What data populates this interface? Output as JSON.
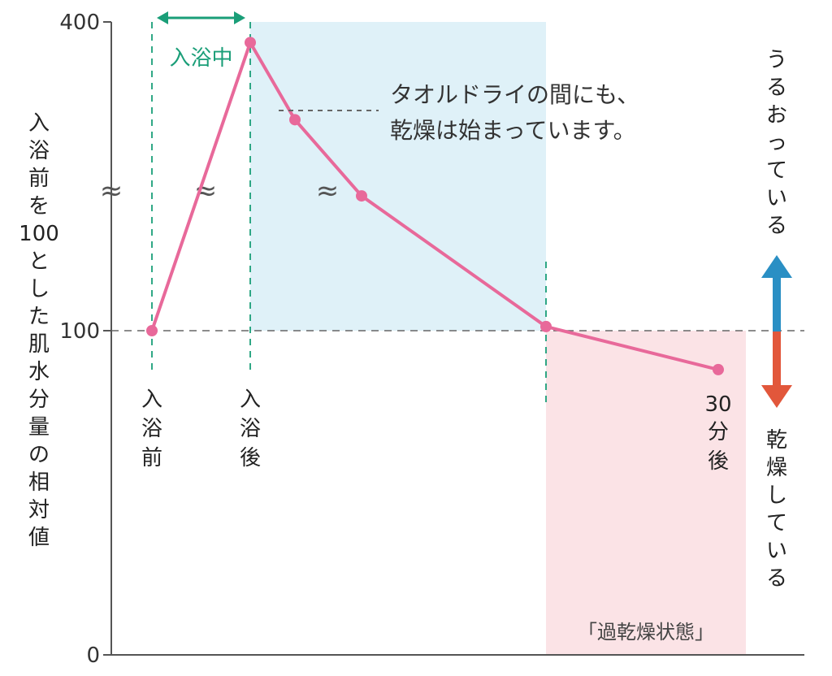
{
  "chart_data": {
    "type": "line",
    "ylabel": "入浴前を100とした肌水分量の相対値",
    "ylim": [
      0,
      400
    ],
    "y_ticks": [
      "0",
      "100",
      "400"
    ],
    "x_labels": [
      {
        "id": "before",
        "text": "入浴前",
        "x": 0
      },
      {
        "id": "after",
        "text": "入浴後",
        "x": 1
      },
      {
        "id": "thirty",
        "text": "30分後",
        "x": 5.8
      }
    ],
    "series": [
      {
        "color": "#e8699a",
        "points": [
          {
            "x": 0,
            "y": 100
          },
          {
            "x": 1,
            "y": 380
          },
          {
            "x": 1.5,
            "y": 305
          },
          {
            "x": 2.2,
            "y": 231
          },
          {
            "x": 4,
            "y": 104
          },
          {
            "x": 5.8,
            "y": 88
          }
        ]
      }
    ],
    "reference_line": {
      "y": 100,
      "style": "dashed"
    },
    "bathing": {
      "label": "入浴中",
      "from": 0,
      "to": 1,
      "color": "#1a9e78"
    },
    "towel_region": {
      "from": 1,
      "to": 4,
      "color": "#dff1f8"
    },
    "towel_note": {
      "line1": "タオルドライの間にも、",
      "line2": "乾燥は始まっています。"
    },
    "overdry_region": {
      "from": 4,
      "to": 6.1,
      "label": "「過乾燥状態」",
      "color": "#fbe3e6"
    },
    "moist_label": "うるおっている",
    "dry_label": "乾燥している",
    "moist_color": "#2a8fc4",
    "dry_color": "#e2573b"
  }
}
